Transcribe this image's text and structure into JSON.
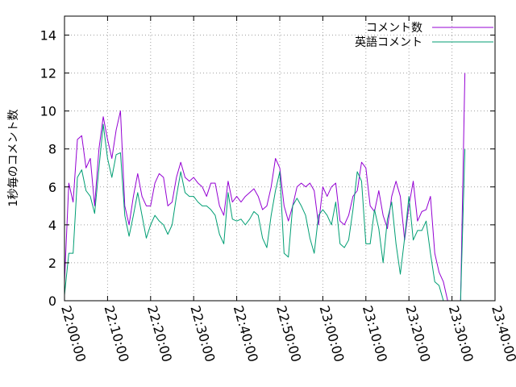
{
  "chart_data": {
    "type": "line",
    "ylabel": "1秒毎のコメント数",
    "xlabel": "",
    "ylim": [
      0,
      15
    ],
    "y_ticks": [
      "0",
      "2",
      "4",
      "6",
      "8",
      "10",
      "12",
      "14"
    ],
    "x_range": [
      "22:00:00",
      "23:40:00"
    ],
    "x_ticks": [
      "22:00:00",
      "22:10:00",
      "22:20:00",
      "22:30:00",
      "22:40:00",
      "22:50:00",
      "23:00:00",
      "23:10:00",
      "23:20:00",
      "23:30:00",
      "23:40:00"
    ],
    "legend_position": "top-right",
    "x": [
      "22:00:00",
      "22:01:00",
      "22:02:00",
      "22:03:00",
      "22:04:00",
      "22:05:00",
      "22:06:00",
      "22:07:00",
      "22:08:00",
      "22:09:00",
      "22:10:00",
      "22:11:00",
      "22:12:00",
      "22:13:00",
      "22:14:00",
      "22:15:00",
      "22:16:00",
      "22:17:00",
      "22:18:00",
      "22:19:00",
      "22:20:00",
      "22:21:00",
      "22:22:00",
      "22:23:00",
      "22:24:00",
      "22:25:00",
      "22:26:00",
      "22:27:00",
      "22:28:00",
      "22:29:00",
      "22:30:00",
      "22:31:00",
      "22:32:00",
      "22:33:00",
      "22:34:00",
      "22:35:00",
      "22:36:00",
      "22:37:00",
      "22:38:00",
      "22:39:00",
      "22:40:00",
      "22:41:00",
      "22:42:00",
      "22:43:00",
      "22:44:00",
      "22:45:00",
      "22:46:00",
      "22:47:00",
      "22:48:00",
      "22:49:00",
      "22:50:00",
      "22:51:00",
      "22:52:00",
      "22:53:00",
      "22:54:00",
      "22:55:00",
      "22:56:00",
      "22:57:00",
      "22:58:00",
      "22:59:00",
      "23:00:00",
      "23:01:00",
      "23:02:00",
      "23:03:00",
      "23:04:00",
      "23:05:00",
      "23:06:00",
      "23:07:00",
      "23:08:00",
      "23:09:00",
      "23:10:00",
      "23:11:00",
      "23:12:00",
      "23:13:00",
      "23:14:00",
      "23:15:00",
      "23:16:00",
      "23:17:00",
      "23:18:00",
      "23:19:00",
      "23:20:00",
      "23:21:00",
      "23:22:00",
      "23:23:00",
      "23:24:00",
      "23:25:00",
      "23:26:00",
      "23:27:00",
      "23:28:00",
      "23:29:00",
      "23:30:00",
      "23:31:00",
      "23:32:00"
    ],
    "series": [
      {
        "name": "コメント数",
        "color": "#9400d3",
        "values": [
          1.0,
          6.2,
          5.2,
          8.5,
          8.7,
          7.0,
          7.5,
          5.0,
          8.0,
          9.7,
          8.5,
          7.5,
          9.0,
          10.0,
          5.0,
          4.0,
          5.5,
          6.7,
          5.5,
          5.0,
          5.0,
          6.2,
          6.7,
          6.5,
          5.0,
          5.2,
          6.5,
          7.3,
          6.5,
          6.3,
          6.5,
          6.2,
          6.0,
          5.5,
          6.2,
          6.2,
          5.0,
          4.5,
          6.3,
          5.2,
          5.5,
          5.2,
          5.5,
          5.7,
          5.9,
          5.5,
          4.8,
          5.0,
          6.0,
          7.5,
          7.0,
          5.0,
          4.2,
          5.0,
          6.0,
          6.2,
          6.0,
          6.2,
          5.8,
          4.0,
          6.0,
          5.5,
          6.0,
          6.2,
          4.2,
          4.0,
          4.5,
          5.5,
          5.8,
          7.3,
          7.0,
          5.0,
          4.7,
          5.8,
          4.5,
          3.8,
          5.5,
          6.3,
          5.5,
          3.2,
          5.0,
          6.3,
          4.2,
          4.7,
          4.8,
          5.5,
          2.5,
          1.5,
          1.0,
          0.0,
          0.0,
          0.0,
          0.0
        ]
      },
      {
        "name": "英語コメント",
        "color": "#009e73",
        "values": [
          0.3,
          2.5,
          2.5,
          6.5,
          6.9,
          5.8,
          5.5,
          4.6,
          7.0,
          9.3,
          7.5,
          6.5,
          7.7,
          7.8,
          4.5,
          3.4,
          4.5,
          5.7,
          4.5,
          3.3,
          4.0,
          4.5,
          4.2,
          4.0,
          3.5,
          4.0,
          5.5,
          6.8,
          5.7,
          5.5,
          5.5,
          5.2,
          5.0,
          5.0,
          4.8,
          4.5,
          3.5,
          3.0,
          5.7,
          4.3,
          4.2,
          4.3,
          4.0,
          4.3,
          4.7,
          4.5,
          3.3,
          2.8,
          4.5,
          5.8,
          6.8,
          2.5,
          2.3,
          5.0,
          5.4,
          5.0,
          4.5,
          3.3,
          2.5,
          4.5,
          4.8,
          4.5,
          4.0,
          5.2,
          3.0,
          2.8,
          3.2,
          4.8,
          6.8,
          6.3,
          3.0,
          3.0,
          4.8,
          3.8,
          2.0,
          4.3,
          5.2,
          3.0,
          1.4,
          3.3,
          5.5,
          3.2,
          3.7,
          3.7,
          4.2,
          2.5,
          1.0,
          0.8,
          0.0,
          0.0,
          0.0,
          0.0,
          0.0
        ]
      }
    ],
    "spike": {
      "x": [
        "23:31:00",
        "23:32:00",
        "23:33:00"
      ],
      "series_values": [
        [
          0.0,
          0.0,
          12.0
        ],
        [
          0.0,
          0.0,
          8.0
        ]
      ]
    }
  }
}
